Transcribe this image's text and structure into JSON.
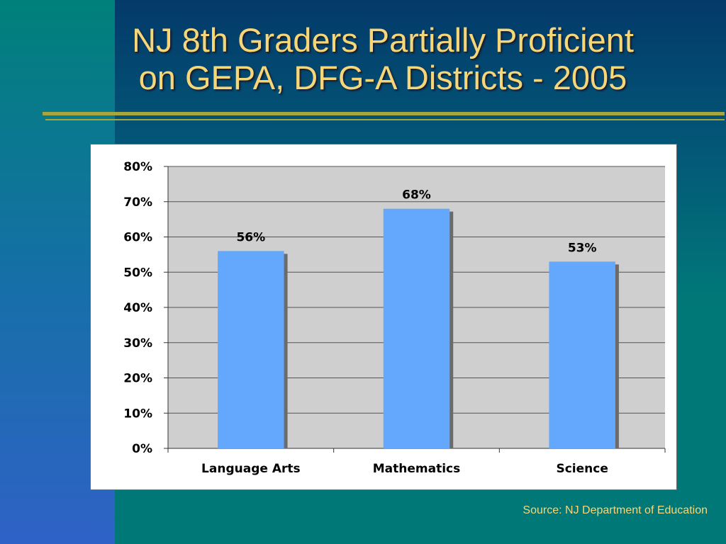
{
  "slide": {
    "title_line1": "NJ 8th Graders Partially Proficient",
    "title_line2": "on GEPA, DFG-A Districts - 2005",
    "source": "Source: NJ Department of Education"
  },
  "colors": {
    "title": "#f5d77a",
    "bar": "#63a8fc",
    "plot_bg": "#cfcfcf"
  },
  "chart_data": {
    "type": "bar",
    "categories": [
      "Language Arts",
      "Mathematics",
      "Science"
    ],
    "values": [
      56,
      68,
      53
    ],
    "value_labels": [
      "56%",
      "68%",
      "53%"
    ],
    "ylim": [
      0,
      80
    ],
    "yticks": [
      0,
      10,
      20,
      30,
      40,
      50,
      60,
      70,
      80
    ],
    "ytick_labels": [
      "0%",
      "10%",
      "20%",
      "30%",
      "40%",
      "50%",
      "60%",
      "70%",
      "80%"
    ],
    "grid": true,
    "legend": "none"
  }
}
